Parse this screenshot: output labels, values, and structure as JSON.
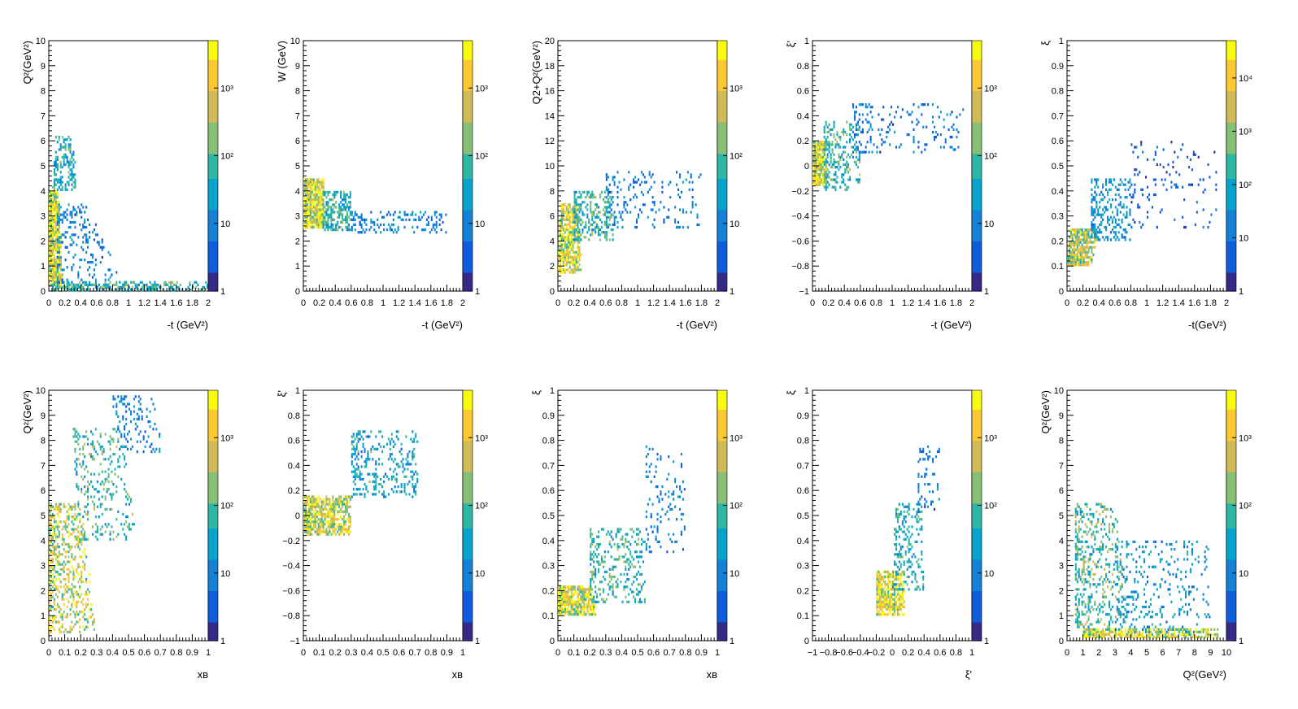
{
  "colormap": [
    "#352a87",
    "#0f5cdd",
    "#1481d6",
    "#06a4ca",
    "#2eb7a4",
    "#87bf77",
    "#d1bb59",
    "#fec832",
    "#f9fb0e"
  ],
  "chart_data": [
    {
      "type": "heatmap",
      "xlabel": "-t (GeV²)",
      "ylabel": "Q²(GeV²)",
      "xlim": [
        0,
        2
      ],
      "ylim": [
        0,
        10
      ],
      "xticks": [
        "0",
        "0.2",
        "0.4",
        "0.6",
        "0.8",
        "1",
        "1.2",
        "1.4",
        "1.6",
        "1.8",
        "2"
      ],
      "yticks": [
        "0",
        "1",
        "2",
        "3",
        "4",
        "5",
        "6",
        "7",
        "8",
        "9",
        "10"
      ],
      "z_max_decade": 3,
      "zticks": [
        "1",
        "10",
        "10²",
        "10³"
      ],
      "clusters": [
        {
          "x0": 0.0,
          "x1": 0.18,
          "y0": 0.2,
          "y1": 4.0,
          "x0b": 0.0,
          "x1b": 0.12,
          "n": 700,
          "dens": 3.2
        },
        {
          "x0": 0.05,
          "x1": 0.35,
          "y0": 4.0,
          "y1": 6.2,
          "x0b": 0.1,
          "x1b": 0.3,
          "n": 160,
          "dens": 1.8
        },
        {
          "x0": 0.05,
          "x1": 2.0,
          "y0": 0.0,
          "y1": 0.35,
          "x0b": 0.05,
          "x1b": 2.0,
          "n": 300,
          "dens": 2.0
        },
        {
          "x0": 0.1,
          "x1": 0.9,
          "y0": 0.3,
          "y1": 3.5,
          "x0b": 0.1,
          "x1b": 0.5,
          "n": 200,
          "dens": 1.2
        }
      ]
    },
    {
      "type": "heatmap",
      "xlabel": "-t (GeV²)",
      "ylabel": "W (GeV)",
      "xlim": [
        0,
        2
      ],
      "ylim": [
        0,
        10
      ],
      "xticks": [
        "0",
        "0.2",
        "0.4",
        "0.6",
        "0.8",
        "1",
        "1.2",
        "1.4",
        "1.6",
        "1.8",
        "2"
      ],
      "yticks": [
        "0",
        "1",
        "2",
        "3",
        "4",
        "5",
        "6",
        "7",
        "8",
        "9",
        "10"
      ],
      "z_max_decade": 3,
      "zticks": [
        "1",
        "10",
        "10²",
        "10³"
      ],
      "clusters": [
        {
          "x0": 0.0,
          "x1": 0.25,
          "y0": 2.5,
          "y1": 4.5,
          "x0b": 0.0,
          "x1b": 0.25,
          "n": 600,
          "dens": 3.2
        },
        {
          "x0": 0.25,
          "x1": 0.6,
          "y0": 2.4,
          "y1": 4.0,
          "x0b": 0.25,
          "x1b": 0.6,
          "n": 250,
          "dens": 2.0
        },
        {
          "x0": 0.6,
          "x1": 1.8,
          "y0": 2.3,
          "y1": 3.2,
          "x0b": 0.6,
          "x1b": 1.8,
          "n": 150,
          "dens": 1.2
        }
      ]
    },
    {
      "type": "heatmap",
      "xlabel": "-t (GeV²)",
      "ylabel": "Q2+Q²(GeV²)",
      "xlim": [
        0,
        2
      ],
      "ylim": [
        0,
        20
      ],
      "xticks": [
        "0",
        "0.2",
        "0.4",
        "0.6",
        "0.8",
        "1",
        "1.2",
        "1.4",
        "1.6",
        "1.8",
        "2"
      ],
      "yticks": [
        "0",
        "2",
        "4",
        "6",
        "8",
        "10",
        "12",
        "14",
        "16",
        "18",
        "20"
      ],
      "z_max_decade": 3,
      "zticks": [
        "1",
        "10",
        "10²",
        "10³"
      ],
      "clusters": [
        {
          "x0": 0.0,
          "x1": 0.3,
          "y0": 1.5,
          "y1": 7.0,
          "x0b": 0.05,
          "x1b": 0.25,
          "n": 500,
          "dens": 3.2
        },
        {
          "x0": 0.2,
          "x1": 0.7,
          "y0": 4.0,
          "y1": 8.0,
          "x0b": 0.2,
          "x1b": 0.7,
          "n": 250,
          "dens": 2.0
        },
        {
          "x0": 0.6,
          "x1": 1.8,
          "y0": 5.0,
          "y1": 9.5,
          "x0b": 0.6,
          "x1b": 1.8,
          "n": 180,
          "dens": 1.1
        }
      ]
    },
    {
      "type": "heatmap",
      "xlabel": "-t (GeV²)",
      "ylabel": "ξ'",
      "xlim": [
        0,
        2
      ],
      "ylim": [
        -1,
        1
      ],
      "xticks": [
        "0",
        "0.2",
        "0.4",
        "0.6",
        "0.8",
        "1",
        "1.2",
        "1.4",
        "1.6",
        "1.8",
        "2"
      ],
      "yticks": [
        "−1",
        "−0.8",
        "−0.6",
        "−0.4",
        "−0.2",
        "0",
        "0.2",
        "0.4",
        "0.6",
        "0.8",
        "1"
      ],
      "z_max_decade": 3,
      "zticks": [
        "1",
        "10",
        "10²",
        "10³"
      ],
      "clusters": [
        {
          "x0": 0.0,
          "x1": 0.2,
          "y0": -0.15,
          "y1": 0.2,
          "x0b": 0.0,
          "x1b": 0.15,
          "n": 450,
          "dens": 3.2
        },
        {
          "x0": 0.15,
          "x1": 0.6,
          "y0": -0.2,
          "y1": 0.35,
          "x0b": 0.15,
          "x1b": 0.6,
          "n": 250,
          "dens": 2.0
        },
        {
          "x0": 0.5,
          "x1": 1.9,
          "y0": 0.1,
          "y1": 0.5,
          "x0b": 0.5,
          "x1b": 1.9,
          "n": 180,
          "dens": 1.1
        }
      ]
    },
    {
      "type": "heatmap",
      "xlabel": "-t(GeV²)",
      "ylabel": "ξ",
      "xlim": [
        0,
        2
      ],
      "ylim": [
        0,
        1
      ],
      "xticks": [
        "0",
        "0.2",
        "0.4",
        "0.6",
        "0.8",
        "1",
        "1.2",
        "1.4",
        "1.6",
        "1.8",
        "2"
      ],
      "yticks": [
        "0",
        "0.1",
        "0.2",
        "0.3",
        "0.4",
        "0.5",
        "0.6",
        "0.7",
        "0.8",
        "0.9",
        "1"
      ],
      "z_max_decade": 4,
      "zticks": [
        "1",
        "10",
        "10²",
        "10³",
        "10⁴"
      ],
      "clusters": [
        {
          "x0": 0.0,
          "x1": 0.3,
          "y0": 0.1,
          "y1": 0.25,
          "x0b": 0.05,
          "x1b": 0.4,
          "n": 450,
          "dens": 3.6
        },
        {
          "x0": 0.3,
          "x1": 0.8,
          "y0": 0.2,
          "y1": 0.45,
          "x0b": 0.3,
          "x1b": 0.8,
          "n": 250,
          "dens": 1.8
        },
        {
          "x0": 0.8,
          "x1": 1.9,
          "y0": 0.25,
          "y1": 0.6,
          "x0b": 0.8,
          "x1b": 1.9,
          "n": 120,
          "dens": 0.9
        }
      ]
    },
    {
      "type": "heatmap",
      "xlabel": "xʙ",
      "ylabel": "Q²(GeV²)",
      "xlim": [
        0,
        1
      ],
      "ylim": [
        0,
        10
      ],
      "xticks": [
        "0",
        "0.1",
        "0.2",
        "0.3",
        "0.4",
        "0.5",
        "0.6",
        "0.7",
        "0.8",
        "0.9",
        "1"
      ],
      "yticks": [
        "0",
        "1",
        "2",
        "3",
        "4",
        "5",
        "6",
        "7",
        "8",
        "9",
        "10"
      ],
      "z_max_decade": 3,
      "zticks": [
        "1",
        "10",
        "10²",
        "10³"
      ],
      "clusters": [
        {
          "x0": 0.0,
          "x1": 0.3,
          "y0": 0.3,
          "y1": 5.5,
          "x0b": 0.0,
          "x1b": 0.2,
          "n": 600,
          "dens": 3.0
        },
        {
          "x0": 0.2,
          "x1": 0.55,
          "y0": 4.0,
          "y1": 8.5,
          "x0b": 0.15,
          "x1b": 0.45,
          "n": 300,
          "dens": 2.0
        },
        {
          "x0": 0.45,
          "x1": 0.72,
          "y0": 7.5,
          "y1": 9.8,
          "x0b": 0.4,
          "x1b": 0.65,
          "n": 120,
          "dens": 1.2
        }
      ]
    },
    {
      "type": "heatmap",
      "xlabel": "xʙ",
      "ylabel": "ξ'",
      "xlim": [
        0,
        1
      ],
      "ylim": [
        -1,
        1
      ],
      "xticks": [
        "0",
        "0.1",
        "0.2",
        "0.3",
        "0.4",
        "0.5",
        "0.6",
        "0.7",
        "0.8",
        "0.9",
        "1"
      ],
      "yticks": [
        "−1",
        "−0.8",
        "−0.6",
        "−0.4",
        "−0.2",
        "0",
        "0.2",
        "0.4",
        "0.6",
        "0.8",
        "1"
      ],
      "z_max_decade": 3,
      "zticks": [
        "1",
        "10",
        "10²",
        "10³"
      ],
      "clusters": [
        {
          "x0": 0.0,
          "x1": 0.3,
          "y0": -0.15,
          "y1": 0.15,
          "x0b": 0.0,
          "x1b": 0.3,
          "n": 600,
          "dens": 3.0,
          "slope": 1.0
        },
        {
          "x0": 0.3,
          "x1": 0.72,
          "y0": 0.15,
          "y1": 0.68,
          "x0b": 0.3,
          "x1b": 0.72,
          "n": 300,
          "dens": 1.6
        }
      ]
    },
    {
      "type": "heatmap",
      "xlabel": "xʙ",
      "ylabel": "ξ",
      "xlim": [
        0,
        1
      ],
      "ylim": [
        0,
        1
      ],
      "xticks": [
        "0",
        "0.1",
        "0.2",
        "0.3",
        "0.4",
        "0.5",
        "0.6",
        "0.7",
        "0.8",
        "0.9",
        "1"
      ],
      "yticks": [
        "0",
        "0.1",
        "0.2",
        "0.3",
        "0.4",
        "0.5",
        "0.6",
        "0.7",
        "0.8",
        "0.9",
        "1"
      ],
      "z_max_decade": 3,
      "zticks": [
        "1",
        "10",
        "10²",
        "10³"
      ],
      "clusters": [
        {
          "x0": 0.0,
          "x1": 0.25,
          "y0": 0.1,
          "y1": 0.22,
          "x0b": 0.0,
          "x1b": 0.2,
          "n": 500,
          "dens": 3.2
        },
        {
          "x0": 0.2,
          "x1": 0.55,
          "y0": 0.15,
          "y1": 0.45,
          "x0b": 0.2,
          "x1b": 0.55,
          "n": 300,
          "dens": 2.0
        },
        {
          "x0": 0.55,
          "x1": 0.8,
          "y0": 0.35,
          "y1": 0.78,
          "x0b": 0.55,
          "x1b": 0.8,
          "n": 120,
          "dens": 1.2
        }
      ]
    },
    {
      "type": "heatmap",
      "xlabel": "ξ'",
      "ylabel": "ξ",
      "xlim": [
        -1,
        1
      ],
      "ylim": [
        0,
        1
      ],
      "xticks": [
        "−1",
        "−0.8",
        "−0.6",
        "−0.4",
        "−0.2",
        "0",
        "0.2",
        "0.4",
        "0.6",
        "0.8",
        "1"
      ],
      "yticks": [
        "0",
        "0.1",
        "0.2",
        "0.3",
        "0.4",
        "0.5",
        "0.6",
        "0.7",
        "0.8",
        "0.9",
        "1"
      ],
      "z_max_decade": 3,
      "zticks": [
        "1",
        "10",
        "10²",
        "10³"
      ],
      "clusters": [
        {
          "x0": -0.2,
          "x1": 0.15,
          "y0": 0.1,
          "y1": 0.28,
          "x0b": -0.2,
          "x1b": 0.15,
          "n": 450,
          "dens": 3.2
        },
        {
          "x0": 0.0,
          "x1": 0.4,
          "y0": 0.2,
          "y1": 0.55,
          "x0b": 0.05,
          "x1b": 0.4,
          "n": 200,
          "dens": 1.8
        },
        {
          "x0": 0.3,
          "x1": 0.6,
          "y0": 0.5,
          "y1": 0.78,
          "x0b": 0.35,
          "x1b": 0.6,
          "n": 60,
          "dens": 1.0
        }
      ]
    },
    {
      "type": "heatmap",
      "xlabel": "Q²(GeV²)",
      "ylabel": "Q²(GeV²)",
      "xlim": [
        0,
        10
      ],
      "ylim": [
        0,
        10
      ],
      "xticks": [
        "0",
        "1",
        "2",
        "3",
        "4",
        "5",
        "6",
        "7",
        "8",
        "9",
        "10"
      ],
      "yticks": [
        "0",
        "1",
        "2",
        "3",
        "4",
        "5",
        "6",
        "7",
        "8",
        "9",
        "10"
      ],
      "z_max_decade": 3,
      "zticks": [
        "1",
        "10",
        "10²",
        "10³"
      ],
      "clusters": [
        {
          "x0": 1.0,
          "x1": 9.5,
          "y0": 0.0,
          "y1": 0.5,
          "x0b": 1.0,
          "x1b": 9.5,
          "n": 500,
          "dens": 3.2
        },
        {
          "x0": 0.5,
          "x1": 4.0,
          "y0": 0.5,
          "y1": 5.5,
          "x0b": 0.5,
          "x1b": 3.0,
          "n": 500,
          "dens": 2.2
        },
        {
          "x0": 3.0,
          "x1": 9.0,
          "y0": 0.3,
          "y1": 4.0,
          "x0b": 3.0,
          "x1b": 9.0,
          "n": 300,
          "dens": 1.4
        }
      ]
    }
  ]
}
